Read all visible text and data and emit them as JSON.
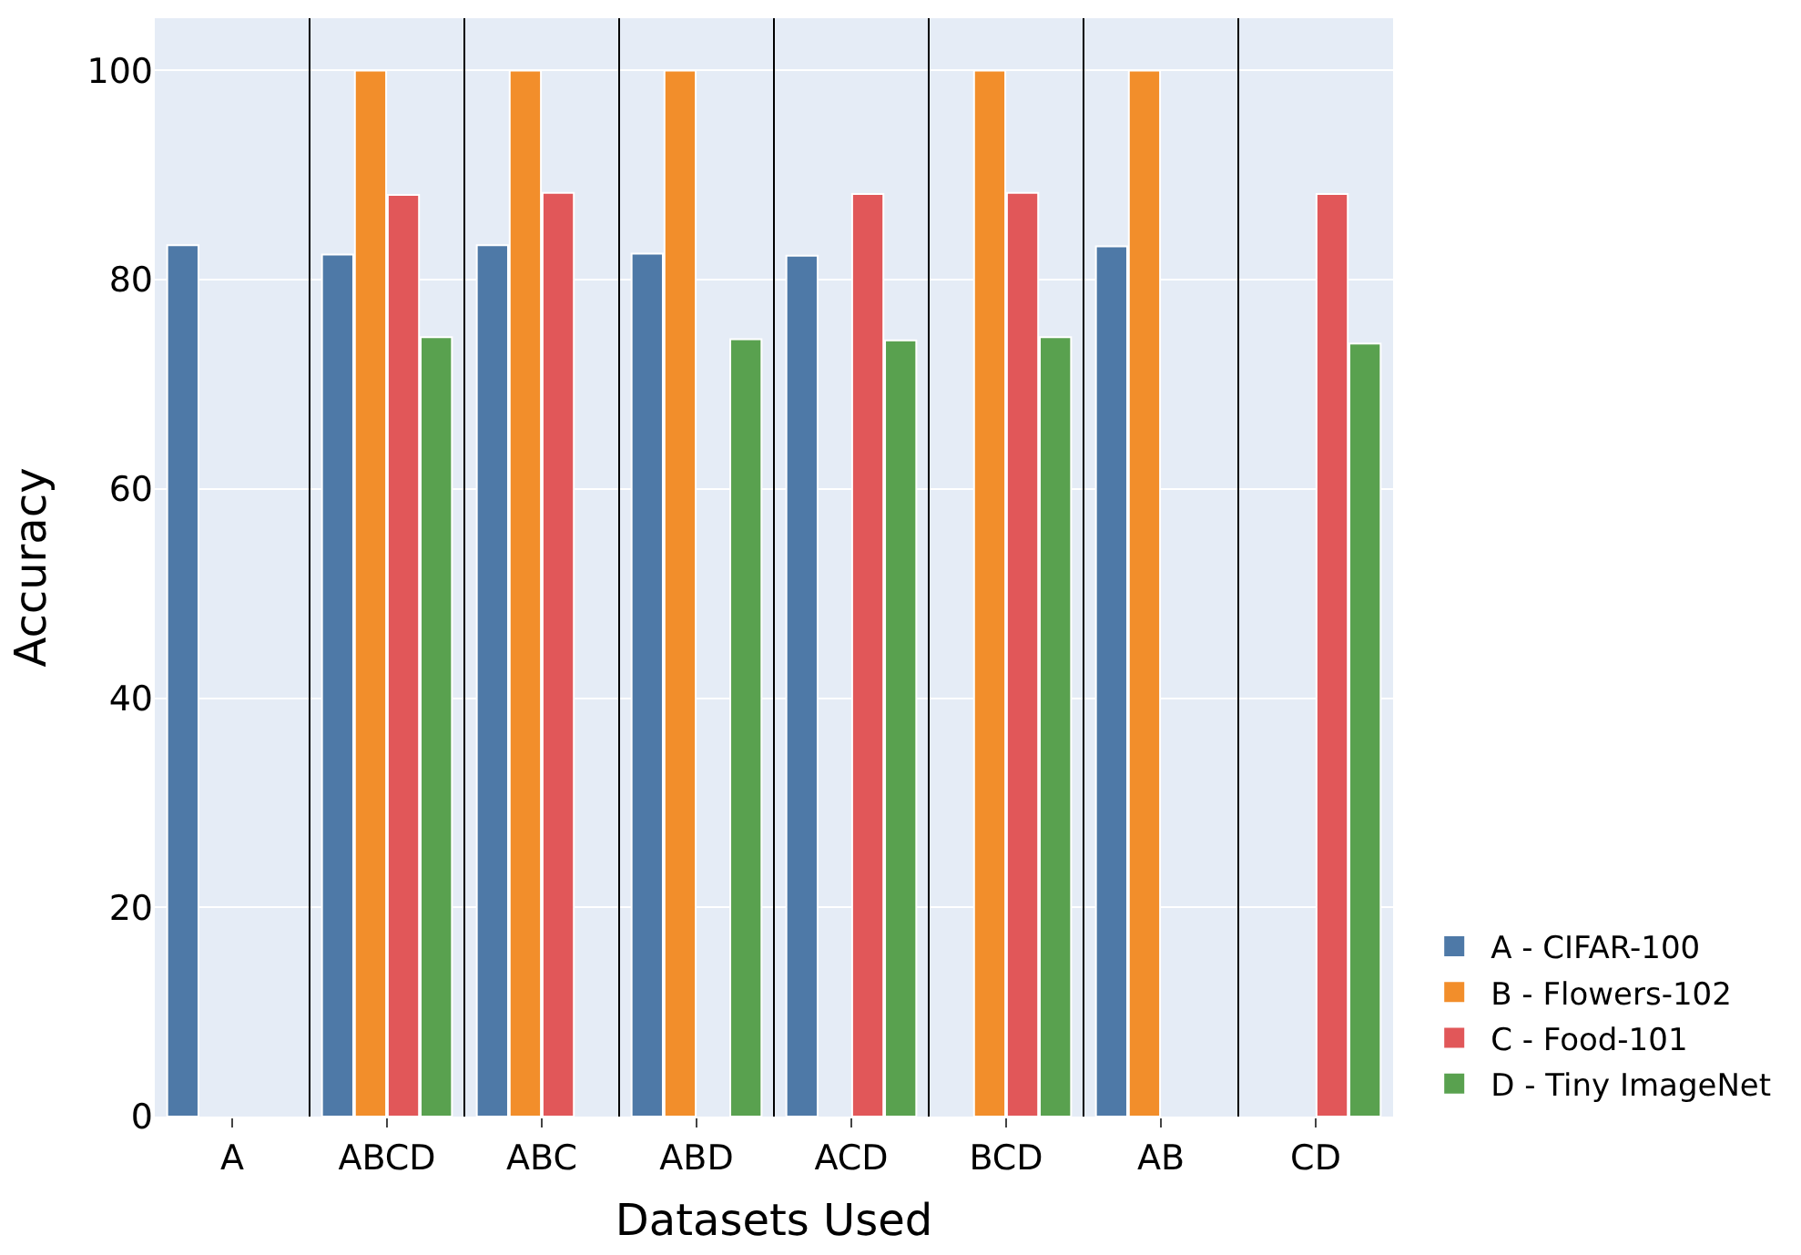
{
  "chart_data": {
    "type": "bar",
    "xlabel": "Datasets Used",
    "ylabel": "Accuracy",
    "categories": [
      "A",
      "ABCD",
      "ABC",
      "ABD",
      "ACD",
      "BCD",
      "AB",
      "CD"
    ],
    "series": [
      {
        "name": "A - CIFAR-100",
        "color": "#4e79a7",
        "values": [
          83.3,
          82.4,
          83.3,
          82.5,
          82.3,
          null,
          83.2,
          null
        ]
      },
      {
        "name": "B - Flowers-102",
        "color": "#f28e2b",
        "values": [
          null,
          100,
          100,
          100,
          null,
          100,
          100,
          null
        ]
      },
      {
        "name": "C - Food-101",
        "color": "#e15759",
        "values": [
          null,
          88.1,
          88.3,
          null,
          88.2,
          88.3,
          null,
          88.2
        ]
      },
      {
        "name": "D - Tiny ImageNet",
        "color": "#59a14f",
        "values": [
          null,
          74.5,
          null,
          74.3,
          74.2,
          74.5,
          null,
          73.9
        ]
      }
    ],
    "ylim": [
      0,
      105
    ],
    "yticks": [
      0,
      20,
      40,
      60,
      80,
      100
    ],
    "grid": "y",
    "legend": "bottom right"
  }
}
